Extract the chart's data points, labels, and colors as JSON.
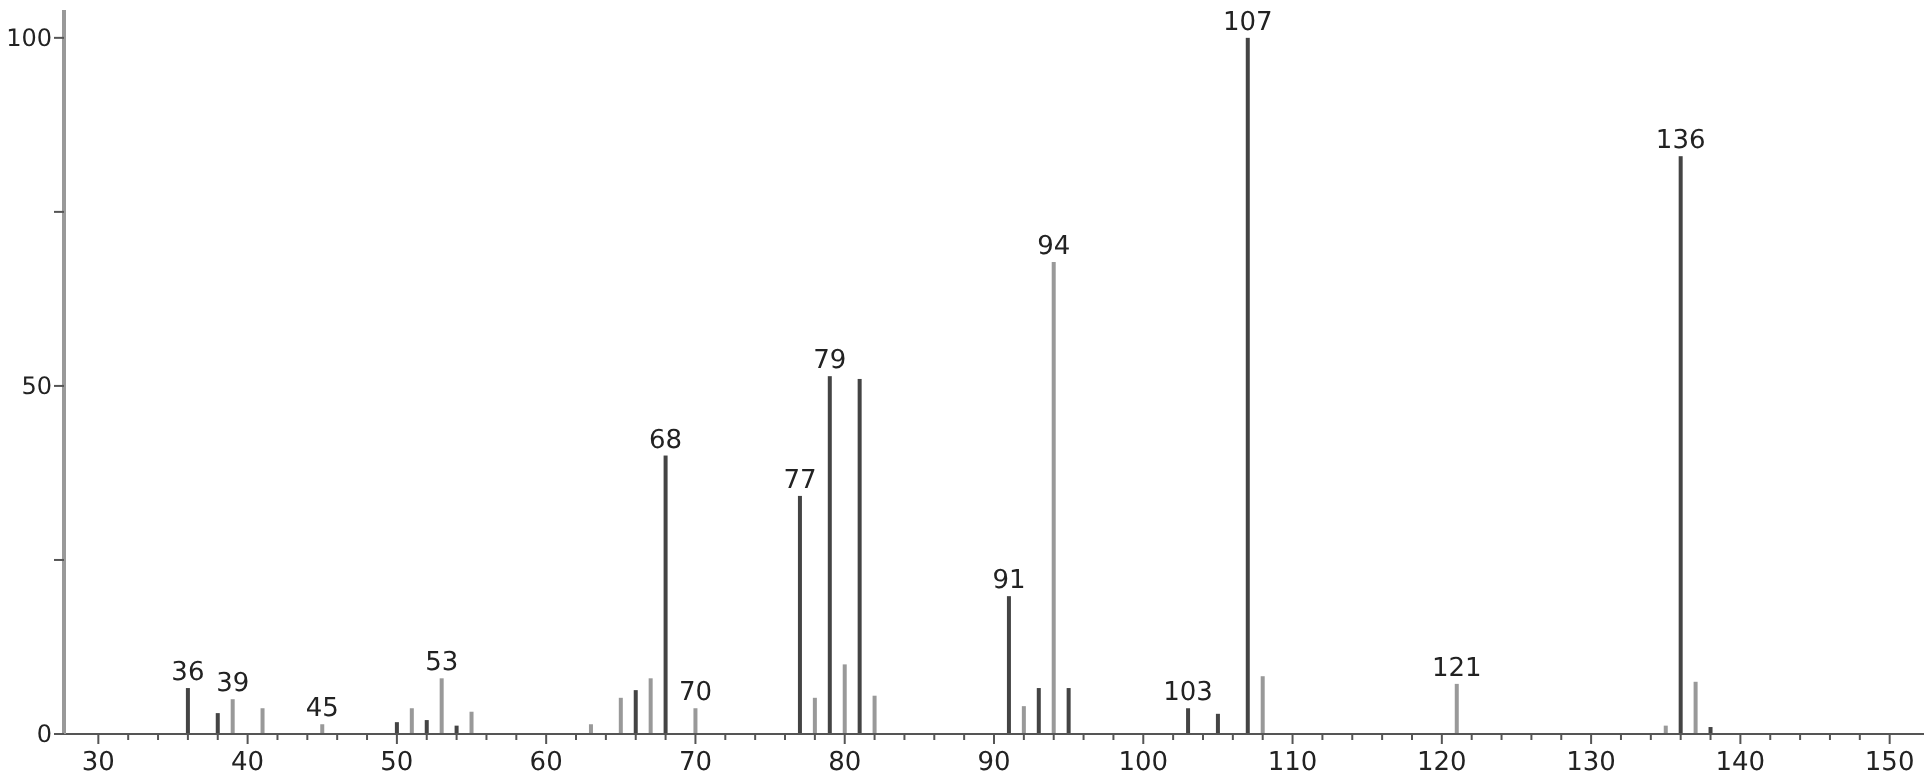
{
  "chart_data": {
    "type": "bar",
    "x": [
      36,
      38,
      39,
      41,
      45,
      50,
      51,
      52,
      53,
      54,
      55,
      63,
      65,
      66,
      67,
      68,
      70,
      77,
      78,
      79,
      80,
      81,
      82,
      91,
      92,
      93,
      94,
      95,
      103,
      105,
      107,
      108,
      121,
      135,
      136,
      137,
      138
    ],
    "values": [
      6.6,
      3,
      5,
      3.7,
      1.4,
      1.7,
      3.7,
      2,
      8,
      1.2,
      3.2,
      1.4,
      5.2,
      6.3,
      8,
      40,
      3.7,
      34.2,
      5.2,
      51.4,
      10,
      51,
      5.5,
      19.8,
      4,
      6.6,
      67.8,
      6.6,
      3.7,
      2.9,
      100,
      8.3,
      7.2,
      1.2,
      83,
      7.5,
      1
    ],
    "colors": [
      "#444444",
      "#444444",
      "#999999",
      "#999999",
      "#999999",
      "#444444",
      "#999999",
      "#444444",
      "#999999",
      "#444444",
      "#999999",
      "#999999",
      "#999999",
      "#444444",
      "#999999",
      "#444444",
      "#999999",
      "#444444",
      "#999999",
      "#444444",
      "#999999",
      "#444444",
      "#999999",
      "#444444",
      "#999999",
      "#444444",
      "#999999",
      "#444444",
      "#444444",
      "#444444",
      "#444444",
      "#999999",
      "#999999",
      "#999999",
      "#444444",
      "#999999",
      "#444444"
    ],
    "xlim": [
      27.7,
      152.3
    ],
    "xticks": [
      30,
      {
        "value": 32,
        "label": null
      },
      {
        "value": 34,
        "label": null
      },
      {
        "value": 36,
        "label": null
      },
      {
        "value": 38,
        "label": null
      },
      40,
      {
        "value": 42,
        "label": null
      },
      {
        "value": 44,
        "label": null
      },
      {
        "value": 46,
        "label": null
      },
      {
        "value": 48,
        "label": null
      },
      50,
      {
        "value": 52,
        "label": null
      },
      {
        "value": 54,
        "label": null
      },
      {
        "value": 56,
        "label": null
      },
      {
        "value": 58,
        "label": null
      },
      60,
      {
        "value": 62,
        "label": null
      },
      {
        "value": 64,
        "label": null
      },
      {
        "value": 66,
        "label": null
      },
      {
        "value": 68,
        "label": null
      },
      70,
      {
        "value": 72,
        "label": null
      },
      {
        "value": 74,
        "label": null
      },
      {
        "value": 76,
        "label": null
      },
      {
        "value": 78,
        "label": null
      },
      80,
      {
        "value": 82,
        "label": null
      },
      {
        "value": 84,
        "label": null
      },
      {
        "value": 86,
        "label": null
      },
      {
        "value": 88,
        "label": null
      },
      90,
      {
        "value": 92,
        "label": null
      },
      {
        "value": 94,
        "label": null
      },
      {
        "value": 96,
        "label": null
      },
      {
        "value": 98,
        "label": null
      },
      100,
      {
        "value": 102,
        "label": null
      },
      {
        "value": 104,
        "label": null
      },
      {
        "value": 106,
        "label": null
      },
      {
        "value": 108,
        "label": null
      },
      110,
      {
        "value": 112,
        "label": null
      },
      {
        "value": 114,
        "label": null
      },
      {
        "value": 116,
        "label": null
      },
      {
        "value": 118,
        "label": null
      },
      120,
      {
        "value": 122,
        "label": null
      },
      {
        "value": 124,
        "label": null
      },
      {
        "value": 126,
        "label": null
      },
      {
        "value": 128,
        "label": null
      },
      130,
      {
        "value": 132,
        "label": null
      },
      {
        "value": 134,
        "label": null
      },
      {
        "value": 136,
        "label": null
      },
      {
        "value": 138,
        "label": null
      },
      140,
      {
        "value": 142,
        "label": null
      },
      {
        "value": 144,
        "label": null
      },
      {
        "value": 146,
        "label": null
      },
      {
        "value": 148,
        "label": null
      },
      150
    ],
    "ylim": [
      0,
      104
    ],
    "yticks": [
      0,
      {
        "value": 25,
        "label": null
      },
      50,
      {
        "value": 75,
        "label": null
      },
      100
    ],
    "annotations": [
      {
        "text": "36",
        "x": 36,
        "y": 6.6
      },
      {
        "text": "39",
        "x": 39,
        "y": 5
      },
      {
        "text": "45",
        "x": 45,
        "y": 1.4
      },
      {
        "text": "53",
        "x": 53,
        "y": 8
      },
      {
        "text": "68",
        "x": 68,
        "y": 40
      },
      {
        "text": "70",
        "x": 70,
        "y": 3.7
      },
      {
        "text": "77",
        "x": 77,
        "y": 34.2
      },
      {
        "text": "79",
        "x": 79,
        "y": 51.4
      },
      {
        "text": "91",
        "x": 91,
        "y": 19.8
      },
      {
        "text": "94",
        "x": 94,
        "y": 67.8
      },
      {
        "text": "103",
        "x": 103,
        "y": 3.7
      },
      {
        "text": "107",
        "x": 107,
        "y": 100
      },
      {
        "text": "121",
        "x": 121,
        "y": 7.2
      },
      {
        "text": "136",
        "x": 136,
        "y": 83
      }
    ]
  }
}
